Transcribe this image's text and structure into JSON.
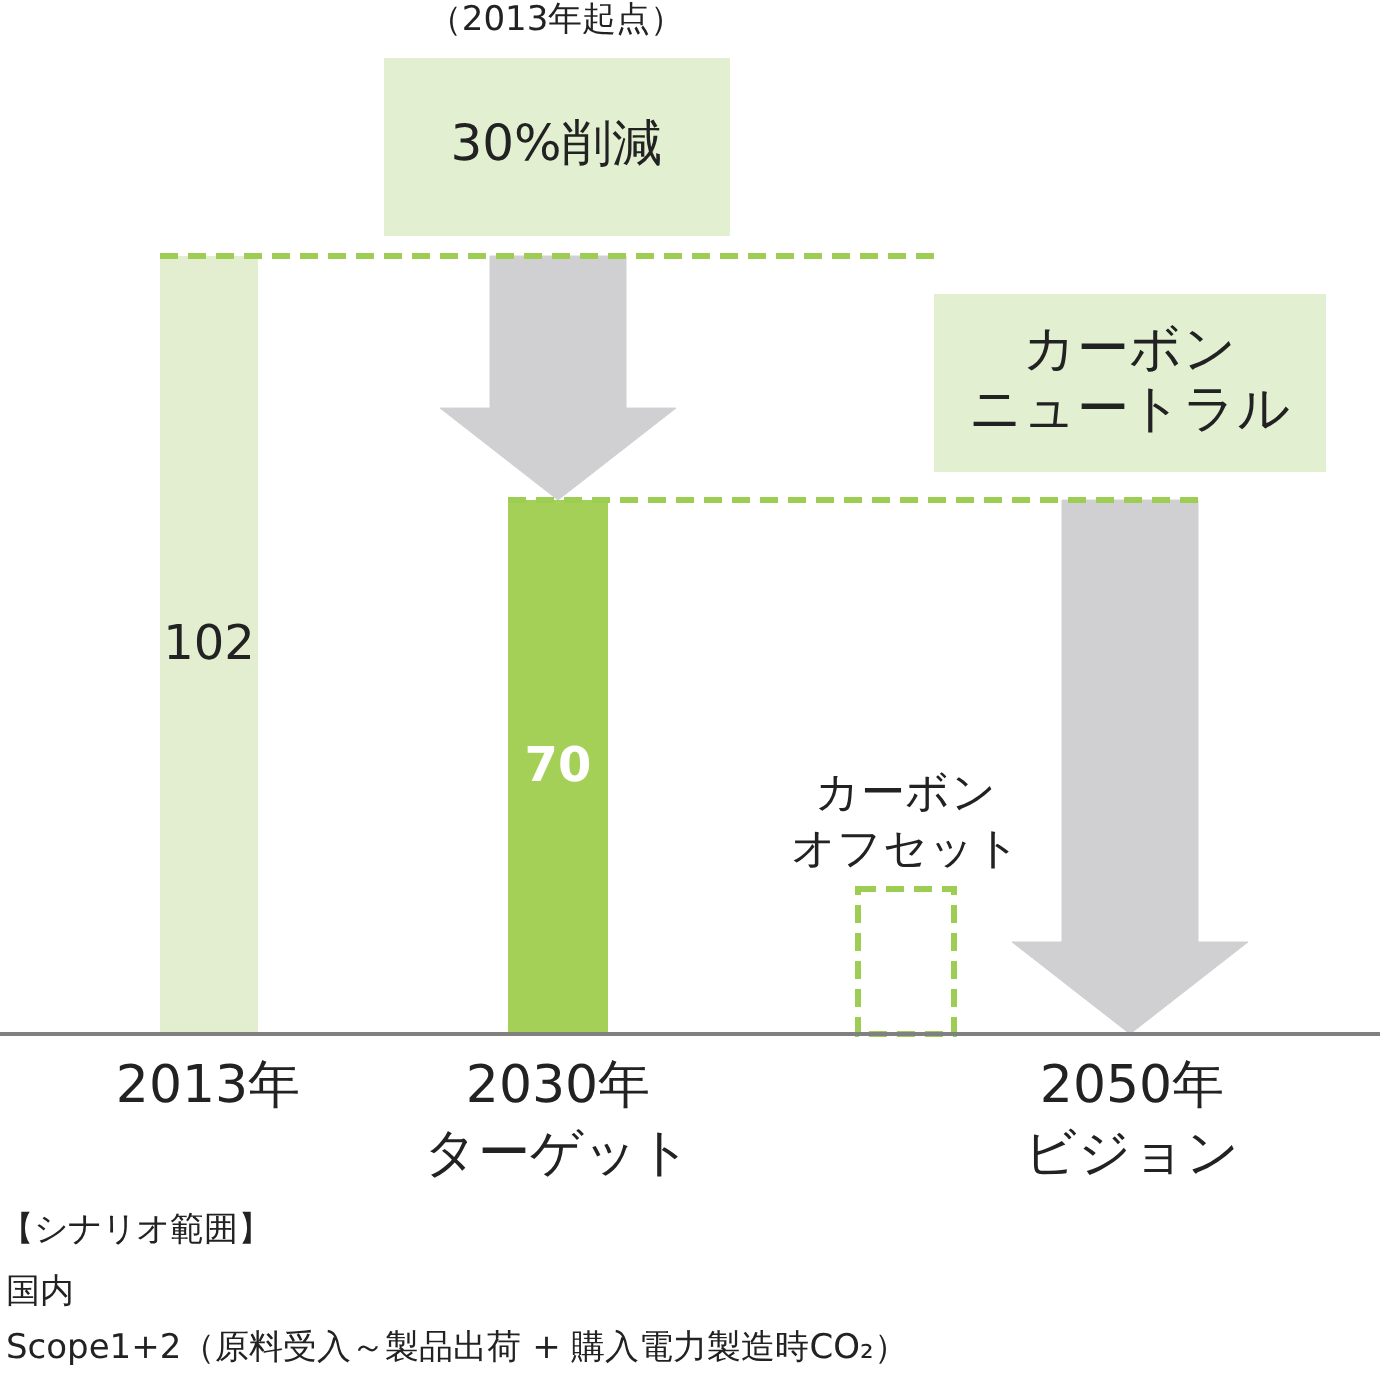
{
  "chart_data": {
    "type": "bar",
    "categories": [
      "2013年",
      "2030年ターゲット",
      "2050年ビジョン"
    ],
    "series": [
      {
        "values": [
          102,
          70,
          null
        ],
        "colors": [
          "#e2eecf",
          "#a5d057",
          null
        ],
        "value_labels": [
          "102",
          "70",
          null
        ]
      },
      {
        "name": "カーボンオフセット",
        "values": [
          null,
          null,
          19
        ],
        "color": "#9dcd52",
        "line_style": "dashed"
      }
    ],
    "ref_lines": [
      {
        "axis": "y",
        "value": 102,
        "color": "#9dcd52",
        "line_style": "dashed"
      },
      {
        "axis": "y",
        "value": 70,
        "color": "#9dcd52",
        "line_style": "dashed"
      }
    ],
    "annotations": [
      "（2013年起点）",
      "30%削減",
      "カーボンニュートラル",
      "【シナリオ範囲】",
      "国内",
      "Scope1+2（原料受入～製品出荷 + 購入電力製造時CO₂）"
    ],
    "tick_labels": "x"
  }
}
